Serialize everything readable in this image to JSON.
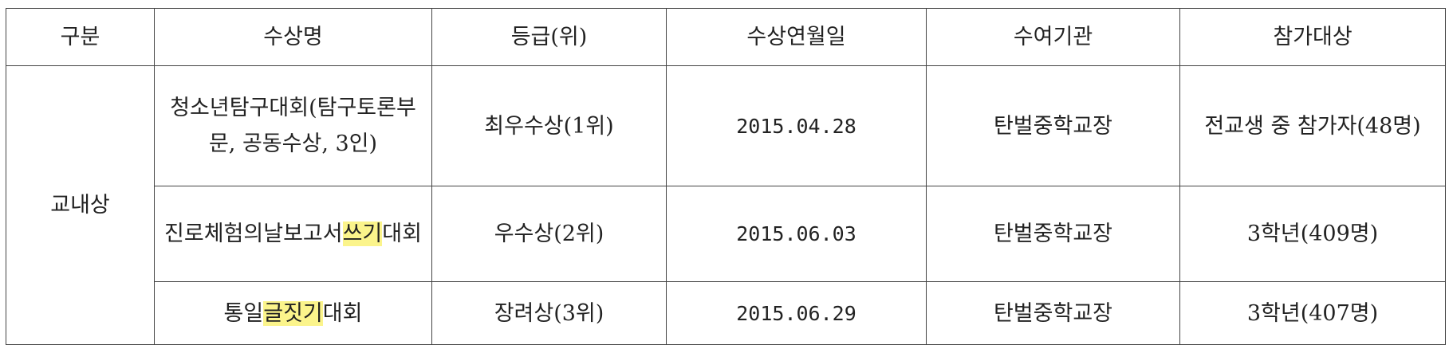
{
  "headers": [
    "구분",
    "수상명",
    "등급(위)",
    "수상연월일",
    "수여기관",
    "참가대상"
  ],
  "category": "교내상",
  "rows": [
    {
      "name_parts": [
        {
          "text": "청소년탐구대회(탐구토론부문, 공동수상, 3인)",
          "highlight": false
        }
      ],
      "grade": "최우수상(1위)",
      "date": "2015.04.28",
      "org": "탄벌중학교장",
      "target": "전교생 중 참가자(48명)"
    },
    {
      "name_parts": [
        {
          "text": "진로체험의날보고서",
          "highlight": false
        },
        {
          "text": "쓰기",
          "highlight": true
        },
        {
          "text": "대회",
          "highlight": false
        }
      ],
      "grade": "우수상(2위)",
      "date": "2015.06.03",
      "org": "탄벌중학교장",
      "target": "3학년(409명)"
    },
    {
      "name_parts": [
        {
          "text": "통일",
          "highlight": false
        },
        {
          "text": "글짓기",
          "highlight": true
        },
        {
          "text": "대회",
          "highlight": false
        }
      ],
      "grade": "장려상(3위)",
      "date": "2015.06.29",
      "org": "탄벌중학교장",
      "target": "3학년(407명)"
    }
  ],
  "colors": {
    "highlight": "#fbf48b",
    "border": "#444444",
    "text": "#222222"
  }
}
